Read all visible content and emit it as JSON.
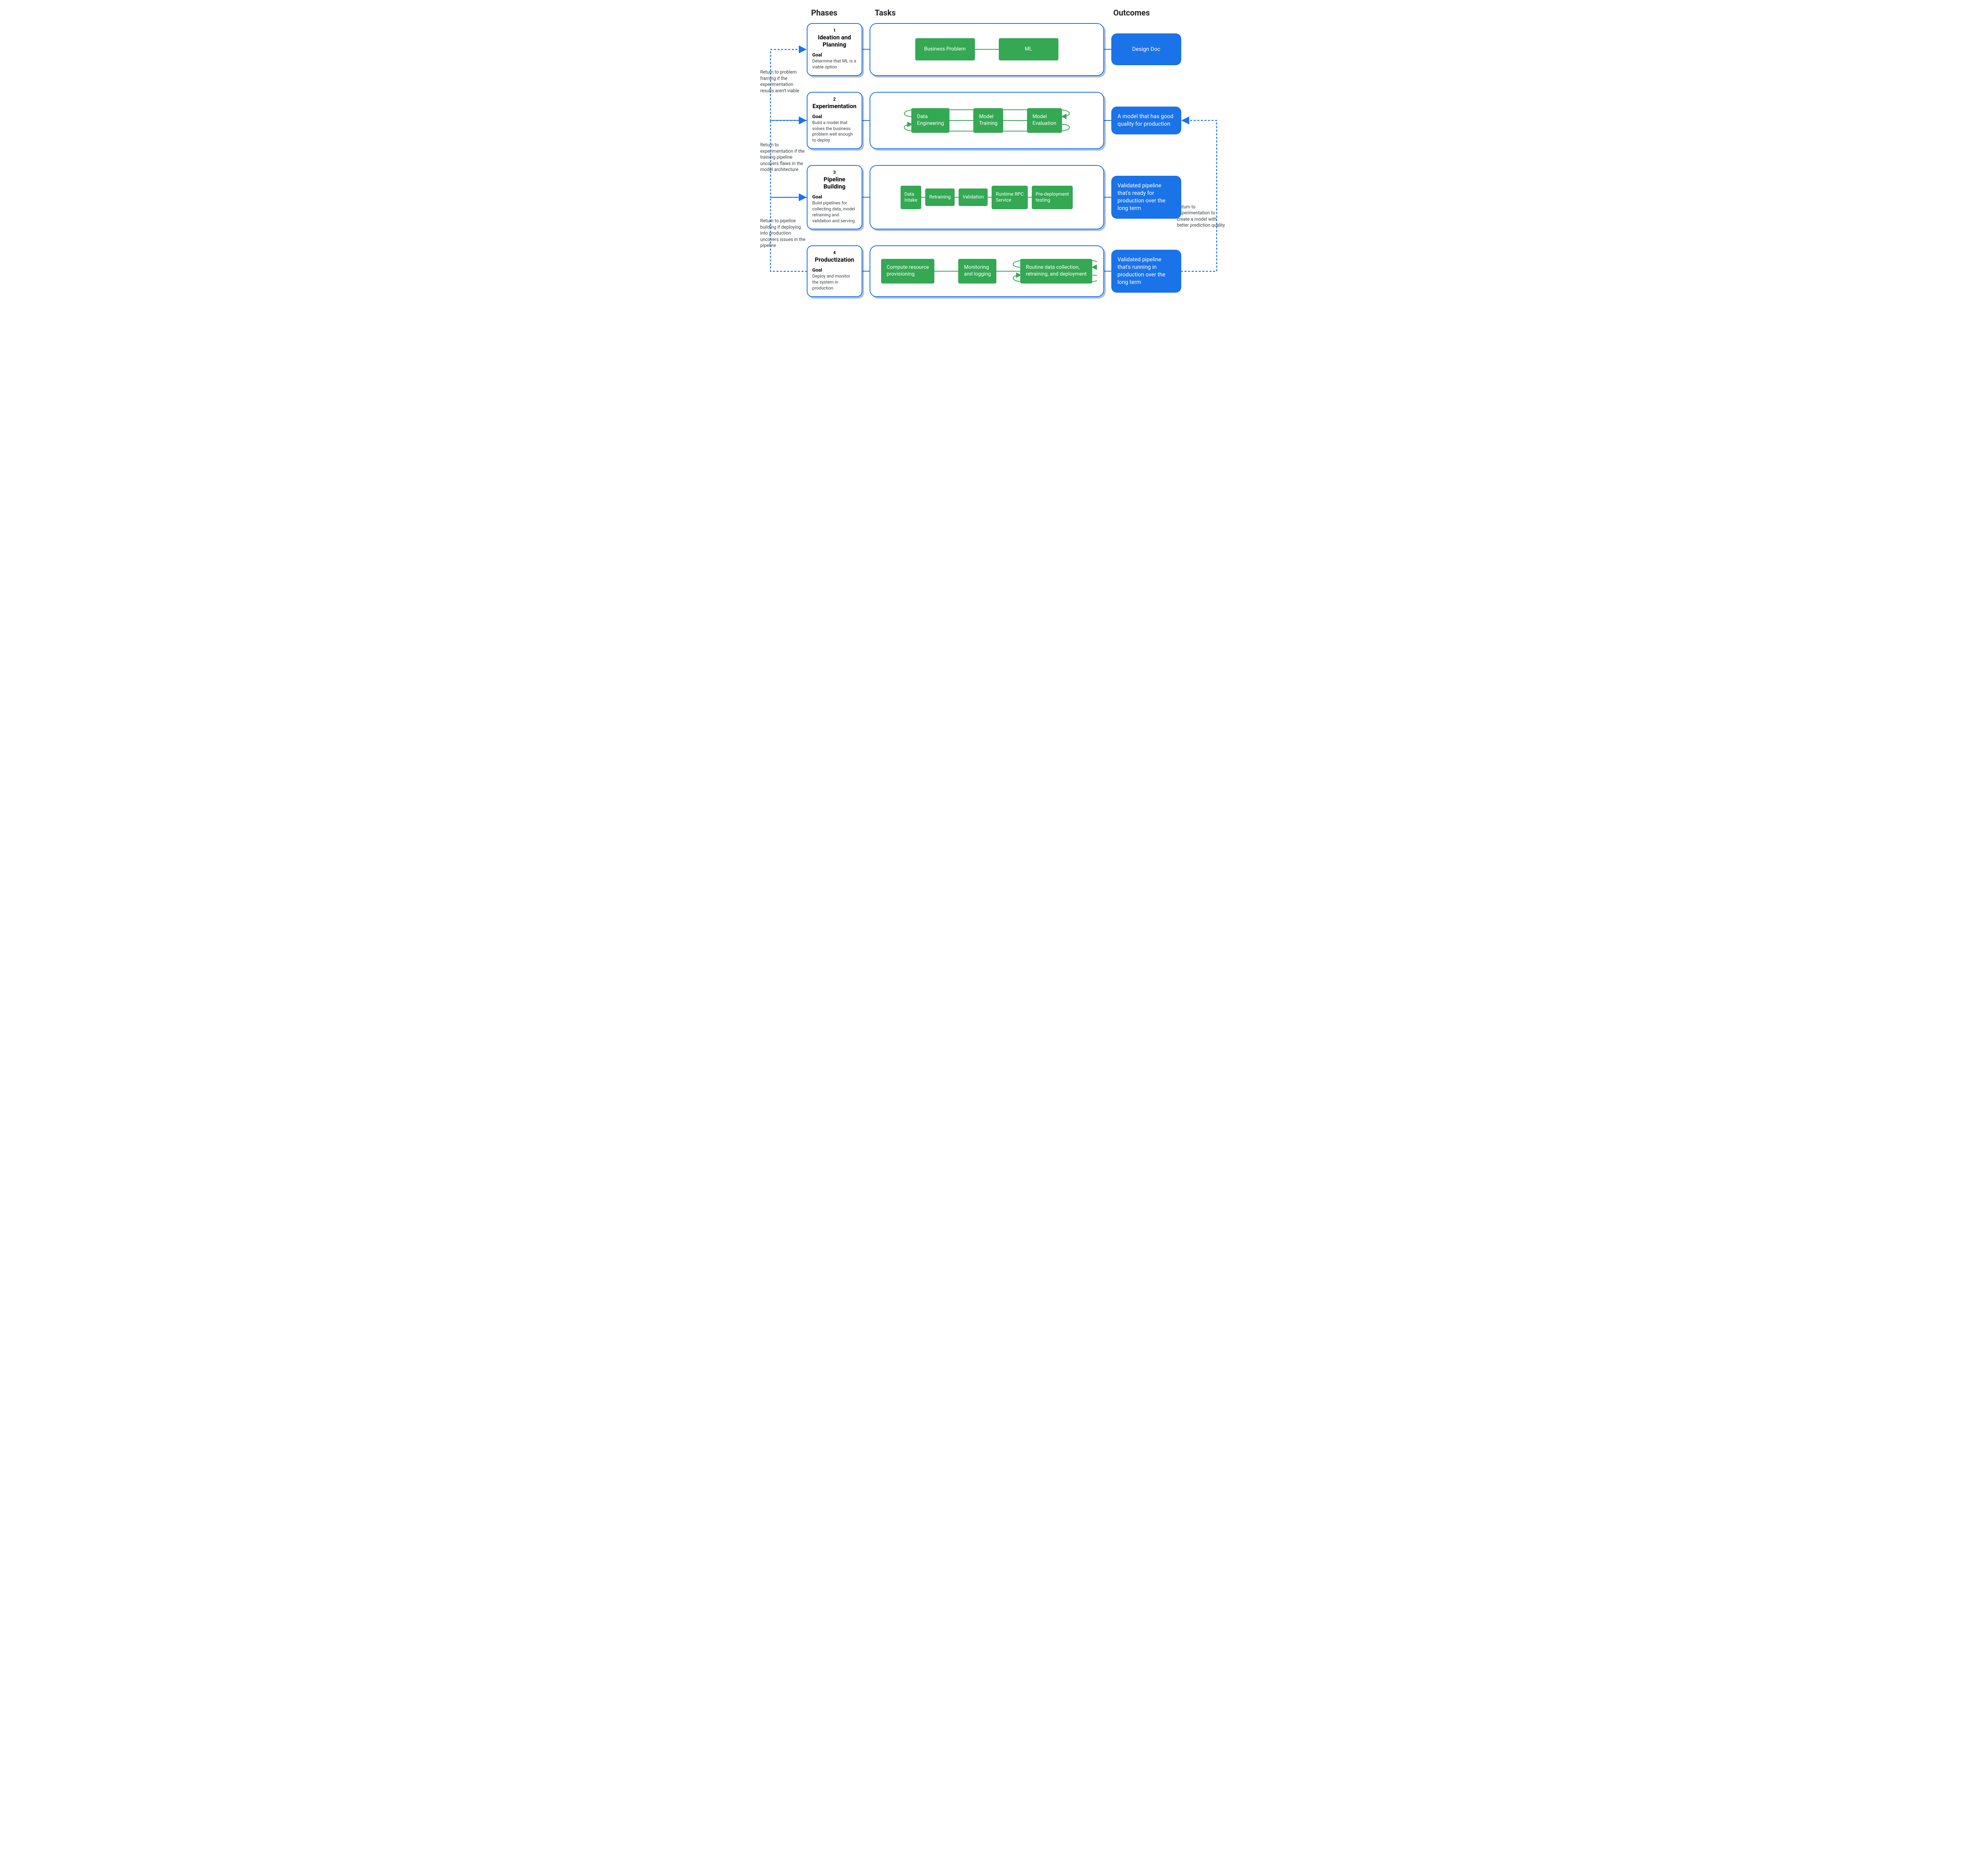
{
  "type": "flowchart",
  "colors": {
    "blue": "#1a73e8",
    "green": "#34a853",
    "text": "#202124",
    "muted": "#3c4043",
    "shadow": "rgba(23,78,166,0.35)",
    "background": "#ffffff"
  },
  "typography": {
    "heading_fontsize": 20,
    "phase_title_fontsize": 15,
    "body_fontsize": 13,
    "small_fontsize": 11
  },
  "headers": {
    "phases": "Phases",
    "tasks": "Tasks",
    "outcomes": "Outcomes"
  },
  "goal_label": "Goal",
  "rows": [
    {
      "num": "1",
      "title": "Ideation and Planning",
      "goal": "Determine that ML is a viable option",
      "tasks": [
        "Business Problem",
        "ML"
      ],
      "task_layout": "linear",
      "outcome": "Design Doc",
      "outcome_align": "center"
    },
    {
      "num": "2",
      "title": "Experimentation",
      "goal": "Build a model that solves the business problem well enough to deploy",
      "tasks": [
        "Data\nEngineering",
        "Model\nTraining",
        "Model\nEvaluation"
      ],
      "task_layout": "loop",
      "outcome": "A model that has good quality for production",
      "outcome_align": "left"
    },
    {
      "num": "3",
      "title": "Pipeline Building",
      "goal": "Build pipelines for collecting data, model retraining and validation and serving",
      "tasks": [
        "Data\nIntake",
        "Retraining",
        "Validation",
        "Runtime RPC\nService",
        "Pre-deployment\ntesting"
      ],
      "task_layout": "linear-tight",
      "outcome": "Validated pipeline that's ready for production over the long term",
      "outcome_align": "left"
    },
    {
      "num": "4",
      "title": "Productization",
      "goal": "Deploy and monitor the system in production",
      "tasks": [
        "Compute  resource\nprovisioning",
        "Monitoring\nand logging",
        "Routine data collection,\nretraining, and deployment"
      ],
      "task_layout": "loop-last",
      "outcome": "Validated pipeline that's running in production over the long term",
      "outcome_align": "left"
    }
  ],
  "left_feedback": [
    {
      "text": "Return to problem framing if the experimentation results aren't viable",
      "from_row": 1,
      "to_row": 0
    },
    {
      "text": "Return to experimentation if the training pipeline uncovers flaws in the model architecture",
      "from_row": 2,
      "to_row": 1
    },
    {
      "text": "Return to pipeline building if deploying into production uncovers issues in the pipeline",
      "from_row": 3,
      "to_row": 2
    }
  ],
  "right_feedback": {
    "text": "Return to experimentation to create a model with better prediction quality",
    "from_row": 3,
    "to_row": 1
  },
  "layout": {
    "row_height_estimate": 165,
    "row_gap": 40,
    "card_border_radius": 14,
    "card_border_width": 2
  }
}
